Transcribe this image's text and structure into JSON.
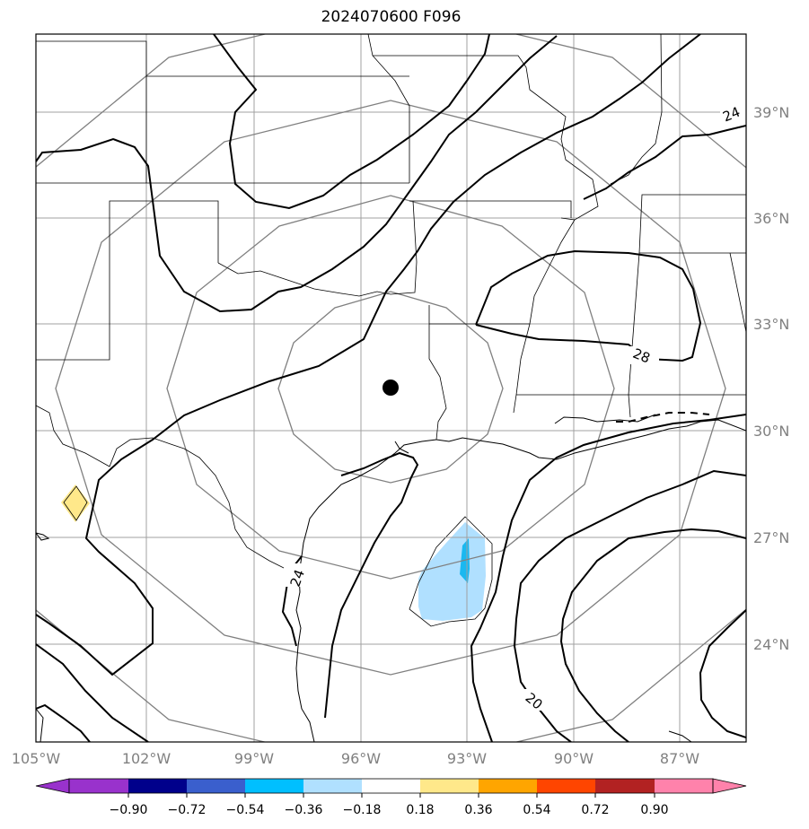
{
  "title": "2024070600 F096",
  "map": {
    "lon_ticks": [
      "105°W",
      "102°W",
      "99°W",
      "96°W",
      "93°W",
      "90°W",
      "87°W"
    ],
    "lat_ticks": [
      "39°N",
      "36°N",
      "33°N",
      "30°N",
      "27°N",
      "24°N"
    ],
    "contour_labels": [
      "24",
      "28",
      "24",
      "20"
    ],
    "center_marker": "storm-center",
    "colors": {
      "gridline": "#a0a0a0",
      "range_ring": "#808080",
      "contour": "#000000",
      "anomaly_negative": "#b0e0ff",
      "anomaly_strong_negative": "#1ab8f0",
      "anomaly_positive": "#ffe88a"
    }
  },
  "colorbar": {
    "ticks": [
      "−0.90",
      "−0.72",
      "−0.54",
      "−0.36",
      "−0.18",
      "0.18",
      "0.36",
      "0.54",
      "0.72",
      "0.90"
    ],
    "colors": [
      "#9932cc",
      "#00008b",
      "#3a5fcd",
      "#00bfff",
      "#b0e0ff",
      "#ffffff",
      "#ffe88a",
      "#ffa500",
      "#ff4500",
      "#b22222",
      "#ff82ab",
      "#ff69b4"
    ]
  }
}
